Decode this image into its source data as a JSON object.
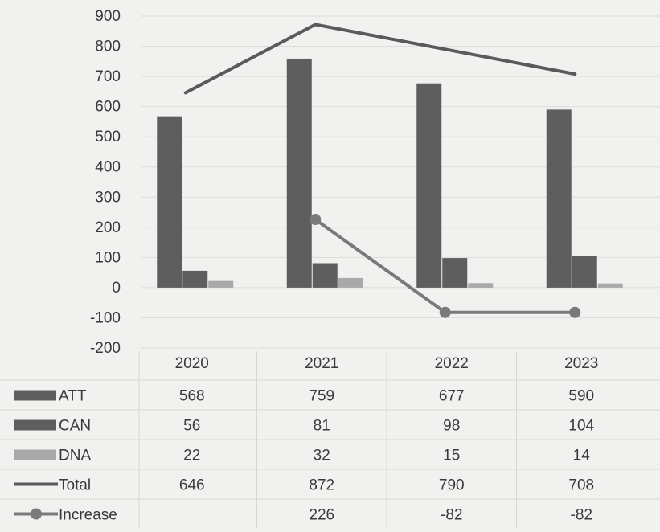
{
  "chart_data": {
    "type": "bar",
    "categories": [
      "2020",
      "2021",
      "2022",
      "2023"
    ],
    "series": [
      {
        "name": "ATT",
        "kind": "bar",
        "values": [
          568,
          759,
          677,
          590
        ],
        "color": "#5e5e5e"
      },
      {
        "name": "CAN",
        "kind": "bar",
        "values": [
          56,
          81,
          98,
          104
        ],
        "color": "#5e5e5e"
      },
      {
        "name": "DNA",
        "kind": "bar",
        "values": [
          22,
          32,
          15,
          14
        ],
        "color": "#a9a9a9"
      },
      {
        "name": "Total",
        "kind": "line",
        "values": [
          646,
          872,
          790,
          708
        ],
        "color": "#5a5a5a"
      },
      {
        "name": "Increase",
        "kind": "line-marker",
        "values": [
          null,
          226,
          -82,
          -82
        ],
        "color": "#7a7a7a"
      }
    ],
    "table": {
      "rows": [
        {
          "label": "ATT",
          "cells": [
            "568",
            "759",
            "677",
            "590"
          ]
        },
        {
          "label": "CAN",
          "cells": [
            "56",
            "81",
            "98",
            "104"
          ]
        },
        {
          "label": "DNA",
          "cells": [
            "22",
            "32",
            "15",
            "14"
          ]
        },
        {
          "label": "Total",
          "cells": [
            "646",
            "872",
            "790",
            "708"
          ]
        },
        {
          "label": "Increase",
          "cells": [
            "",
            "226",
            "-82",
            "-82"
          ]
        }
      ]
    },
    "ylim": [
      -200,
      900
    ],
    "yticks": [
      900,
      800,
      700,
      600,
      500,
      400,
      300,
      200,
      100,
      0,
      -100,
      -200
    ],
    "grid": true,
    "legend": "data-table"
  }
}
